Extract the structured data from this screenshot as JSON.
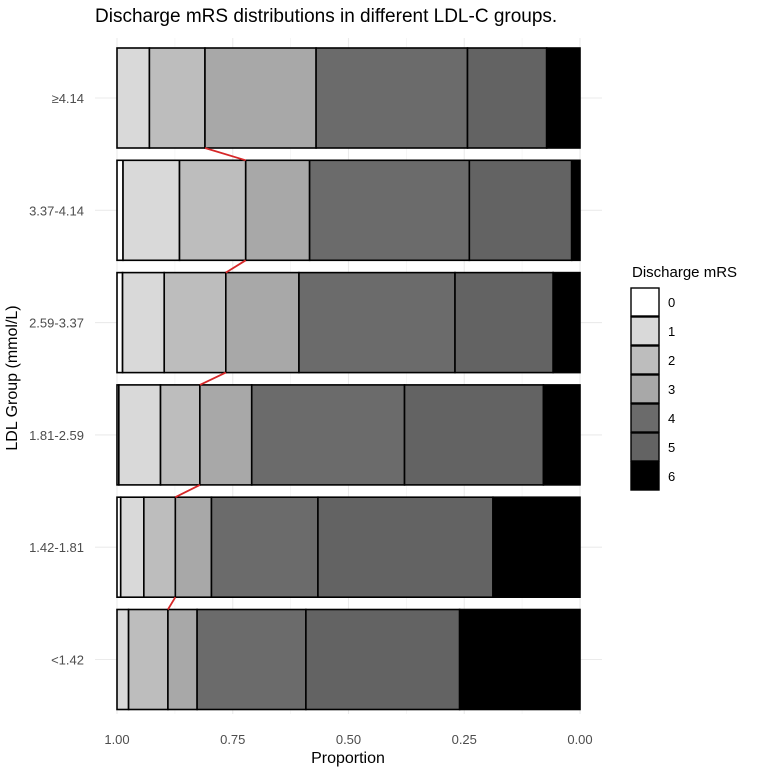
{
  "chart_data": {
    "type": "bar",
    "orientation": "horizontal",
    "stacked": "proportion",
    "title": "Discharge mRS distributions in different LDL-C groups.",
    "xlabel": "Proportion",
    "ylabel": "LDL Group (mmol/L)",
    "x_reversed": true,
    "xlim": [
      1.0,
      0.0
    ],
    "x_ticks": [
      "1.00",
      "0.75",
      "0.50",
      "0.25",
      "0.00"
    ],
    "x_tick_values": [
      1.0,
      0.75,
      0.5,
      0.25,
      0.0
    ],
    "grid": true,
    "legend_position": "right",
    "legend_title": "Discharge mRS",
    "categories": [
      "≥4.14",
      "3.37-4.14",
      "2.59-3.37",
      "1.81-2.59",
      "1.42-1.81",
      "<1.42"
    ],
    "series": [
      {
        "name": "0",
        "color": "#ffffff",
        "values": [
          0.0,
          0.013,
          0.012,
          0.004,
          0.008,
          0.0
        ]
      },
      {
        "name": "1",
        "color": "#d9d9d9",
        "values": [
          0.07,
          0.122,
          0.09,
          0.09,
          0.05,
          0.025
        ]
      },
      {
        "name": "2",
        "color": "#bdbdbd",
        "values": [
          0.12,
          0.143,
          0.133,
          0.085,
          0.068,
          0.085
        ]
      },
      {
        "name": "3",
        "color": "#a8a8a8",
        "values": [
          0.24,
          0.138,
          0.158,
          0.112,
          0.078,
          0.063
        ]
      },
      {
        "name": "4",
        "color": "#6b6b6b",
        "values": [
          0.327,
          0.345,
          0.337,
          0.33,
          0.23,
          0.235
        ]
      },
      {
        "name": "5",
        "color": "#636363",
        "values": [
          0.171,
          0.221,
          0.212,
          0.3,
          0.378,
          0.332
        ]
      },
      {
        "name": "6",
        "color": "#000000",
        "values": [
          0.072,
          0.018,
          0.058,
          0.079,
          0.188,
          0.26
        ]
      }
    ],
    "connector_color": "#d62728"
  }
}
